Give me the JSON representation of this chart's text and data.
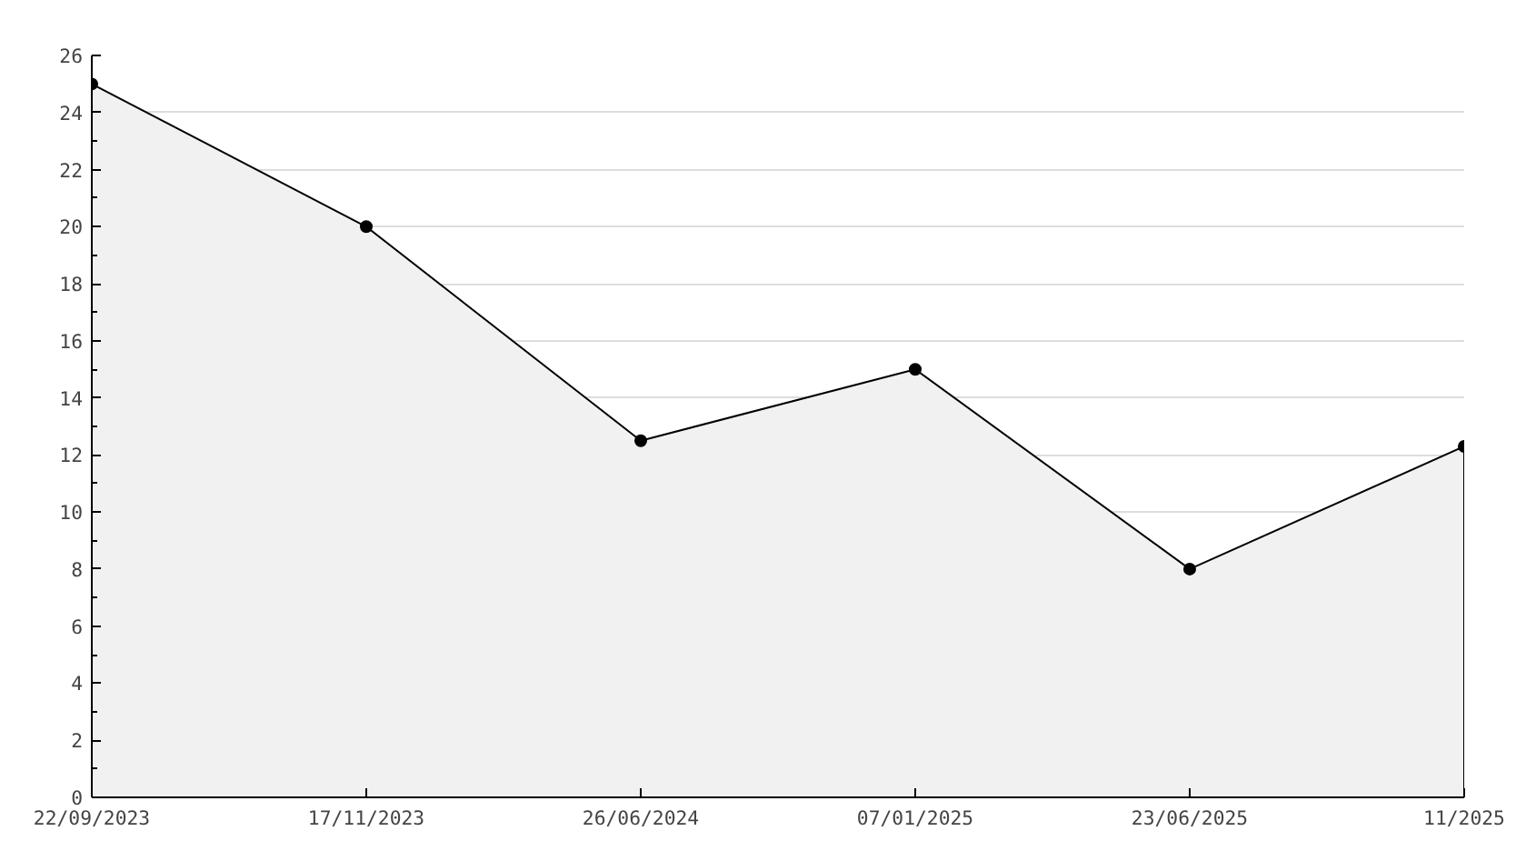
{
  "chart_data": {
    "type": "area",
    "categories": [
      "22/09/2023",
      "17/11/2023",
      "26/06/2024",
      "07/01/2025",
      "23/06/2025",
      "11/2025"
    ],
    "series": [
      {
        "color": "#f1f1f1",
        "values": [
          25,
          20,
          12.5,
          15,
          8,
          12.3
        ]
      }
    ],
    "ylim": [
      0,
      26
    ],
    "yticks": [
      0,
      2,
      4,
      6,
      8,
      10,
      12,
      14,
      16,
      18,
      20,
      22,
      24,
      26
    ],
    "grid": "y",
    "marker": "circle",
    "line_style": "solid"
  }
}
